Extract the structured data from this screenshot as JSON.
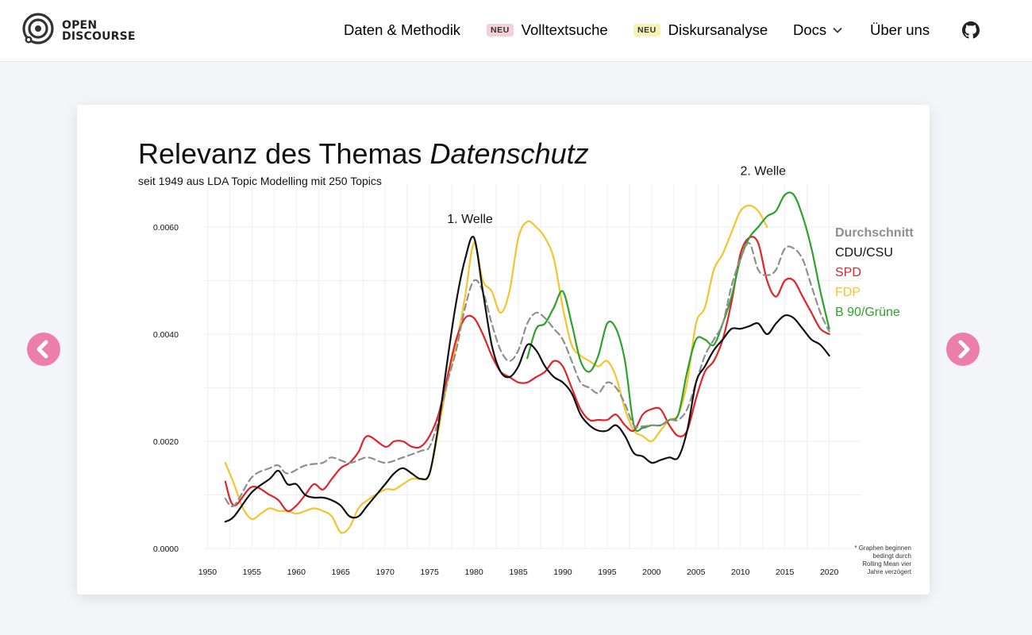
{
  "header": {
    "logo_line1": "OPEN",
    "logo_line2": "DISCOURSE",
    "nav": [
      {
        "label": "Daten & Methodik"
      },
      {
        "label": "Volltextsuche",
        "badge": "NEU",
        "badge_color": "#f6d0d8"
      },
      {
        "label": "Diskursanalyse",
        "badge": "NEU",
        "badge_color": "#f8f2b5"
      },
      {
        "label": "Docs"
      },
      {
        "label": "Über uns"
      }
    ],
    "github_icon": "github-icon"
  },
  "carousel": {
    "prev_icon": "chevron-left-icon",
    "next_icon": "chevron-right-icon",
    "accent": "#ec7fa9"
  },
  "chart_data": {
    "type": "line",
    "title_plain": "Relevanz des Themas ",
    "title_italic": "Datenschutz",
    "subtitle": "seit 1949 aus LDA Topic Modelling mit 250 Topics",
    "xlim": [
      1948,
      2022
    ],
    "ylim": [
      0,
      0.0068
    ],
    "x_ticks": [
      1950,
      1955,
      1960,
      1965,
      1970,
      1975,
      1980,
      1985,
      1990,
      1995,
      2000,
      2005,
      2010,
      2015,
      2020
    ],
    "y_ticks": [
      {
        "value": 0.0,
        "label": "0.0000"
      },
      {
        "value": 0.002,
        "label": "0.0020"
      },
      {
        "value": 0.004,
        "label": "0.0040"
      },
      {
        "value": 0.006,
        "label": "0.0060"
      }
    ],
    "grid": true,
    "legend_position": "right",
    "annotations": [
      {
        "text": "1. Welle",
        "x": 1980,
        "y": 0.006
      },
      {
        "text": "2. Welle",
        "x": 2013,
        "y": 0.0069
      }
    ],
    "footnote": [
      "* Graphen beginnen",
      "bedingt durch",
      "Rolling Mean vier",
      "Jahre verzögert"
    ],
    "series": [
      {
        "name": "Durchschnitt",
        "color": "#8e8e8e",
        "dashed": true,
        "x": [
          1952,
          1953,
          1955,
          1957,
          1958,
          1959,
          1961,
          1963,
          1964,
          1966,
          1968,
          1970,
          1972,
          1974,
          1975,
          1976,
          1977,
          1978,
          1979,
          1980,
          1981,
          1982,
          1983,
          1984,
          1985,
          1986,
          1987,
          1988,
          1989,
          1990,
          1991,
          1992,
          1993,
          1994,
          1995,
          1996,
          1997,
          1998,
          1999,
          2000,
          2001,
          2002,
          2003,
          2004,
          2005,
          2006,
          2007,
          2008,
          2009,
          2010,
          2011,
          2012,
          2013,
          2014,
          2015,
          2016,
          2017,
          2018,
          2019,
          2020
        ],
        "y": [
          0.00093,
          0.0008,
          0.00133,
          0.0015,
          0.00155,
          0.0014,
          0.00155,
          0.0016,
          0.0017,
          0.0016,
          0.0017,
          0.0016,
          0.0017,
          0.00182,
          0.0019,
          0.0024,
          0.0031,
          0.0037,
          0.0045,
          0.005,
          0.0048,
          0.0042,
          0.0037,
          0.0035,
          0.0037,
          0.0042,
          0.0044,
          0.0043,
          0.0041,
          0.0039,
          0.0035,
          0.0031,
          0.003,
          0.0029,
          0.0031,
          0.003,
          0.0027,
          0.0023,
          0.00228,
          0.0023,
          0.0023,
          0.0024,
          0.0024,
          0.0026,
          0.0031,
          0.0036,
          0.0039,
          0.0042,
          0.0049,
          0.0054,
          0.0057,
          0.0052,
          0.0051,
          0.0052,
          0.0056,
          0.0056,
          0.0054,
          0.0049,
          0.0044,
          0.00405
        ]
      },
      {
        "name": "CDU/CSU",
        "color": "#111111",
        "dashed": false,
        "x": [
          1952,
          1953,
          1955,
          1957,
          1958,
          1959,
          1960,
          1961,
          1962,
          1963,
          1964,
          1965,
          1966,
          1967,
          1968,
          1970,
          1971,
          1972,
          1973,
          1974,
          1975,
          1976,
          1977,
          1978,
          1979,
          1980,
          1981,
          1982,
          1983,
          1984,
          1985,
          1986,
          1987,
          1988,
          1989,
          1990,
          1991,
          1992,
          1993,
          1994,
          1995,
          1996,
          1997,
          1998,
          1999,
          2000,
          2001,
          2002,
          2003,
          2004,
          2005,
          2006,
          2007,
          2008,
          2009,
          2010,
          2011,
          2012,
          2013,
          2014,
          2015,
          2016,
          2017,
          2018,
          2019,
          2020
        ],
        "y": [
          0.0005,
          0.0006,
          0.00105,
          0.0013,
          0.00145,
          0.0012,
          0.0012,
          0.001,
          0.00095,
          0.00095,
          0.0009,
          0.0008,
          0.0006,
          0.0006,
          0.0008,
          0.0012,
          0.0014,
          0.0015,
          0.0014,
          0.0013,
          0.0014,
          0.0023,
          0.0035,
          0.0046,
          0.0054,
          0.0058,
          0.0048,
          0.0038,
          0.0033,
          0.0032,
          0.0034,
          0.0038,
          0.0037,
          0.0034,
          0.0032,
          0.0031,
          0.0029,
          0.0025,
          0.0023,
          0.0022,
          0.0022,
          0.0023,
          0.0021,
          0.00178,
          0.00172,
          0.0016,
          0.00165,
          0.0017,
          0.0017,
          0.0022,
          0.0031,
          0.0034,
          0.0037,
          0.0039,
          0.0041,
          0.0041,
          0.00415,
          0.0042,
          0.004,
          0.0042,
          0.00435,
          0.0043,
          0.0041,
          0.0039,
          0.0038,
          0.0036
        ]
      },
      {
        "name": "SPD",
        "color": "#e0242b",
        "dashed": false,
        "x": [
          1952,
          1953,
          1955,
          1957,
          1958,
          1959,
          1960,
          1961,
          1962,
          1963,
          1964,
          1965,
          1966,
          1967,
          1968,
          1970,
          1971,
          1972,
          1973,
          1974,
          1975,
          1976,
          1977,
          1978,
          1979,
          1980,
          1981,
          1982,
          1983,
          1984,
          1985,
          1986,
          1987,
          1988,
          1989,
          1990,
          1991,
          1992,
          1993,
          1994,
          1995,
          1996,
          1997,
          1998,
          1999,
          2000,
          2001,
          2002,
          2003,
          2004,
          2005,
          2006,
          2007,
          2008,
          2009,
          2010,
          2011,
          2012,
          2013,
          2014,
          2015,
          2016,
          2017,
          2018,
          2019,
          2020
        ],
        "y": [
          0.00125,
          0.0008,
          0.00115,
          0.001,
          0.0009,
          0.0007,
          0.0008,
          0.001,
          0.0012,
          0.0011,
          0.0013,
          0.0015,
          0.0016,
          0.0018,
          0.0021,
          0.0019,
          0.002,
          0.002,
          0.0019,
          0.0019,
          0.0021,
          0.0025,
          0.0032,
          0.0039,
          0.0043,
          0.0043,
          0.004,
          0.0036,
          0.0033,
          0.0032,
          0.0031,
          0.0031,
          0.0032,
          0.0033,
          0.0035,
          0.0034,
          0.003,
          0.0026,
          0.0024,
          0.0024,
          0.0024,
          0.0025,
          0.0023,
          0.0022,
          0.0025,
          0.0026,
          0.0026,
          0.0023,
          0.0021,
          0.0022,
          0.0028,
          0.0033,
          0.0035,
          0.0039,
          0.0046,
          0.0055,
          0.0058,
          0.0057,
          0.005,
          0.0047,
          0.005,
          0.005,
          0.0047,
          0.0044,
          0.0041,
          0.004
        ]
      },
      {
        "name": "FDP",
        "color": "#f2c52c",
        "dashed": false,
        "x": [
          1952,
          1953,
          1954,
          1955,
          1956,
          1957,
          1958,
          1959,
          1960,
          1961,
          1962,
          1963,
          1964,
          1965,
          1966,
          1967,
          1968,
          1970,
          1971,
          1972,
          1973,
          1974,
          1975,
          1976,
          1977,
          1978,
          1979,
          1980,
          1981,
          1982,
          1983,
          1984,
          1985,
          1986,
          1987,
          1988,
          1989,
          1990,
          1991,
          1992,
          1993,
          1994,
          1995,
          1996,
          1997,
          1998,
          1999,
          2000,
          2001,
          2002,
          2003,
          2004,
          2005,
          2006,
          2007,
          2008,
          2009,
          2010,
          2011,
          2012,
          2013
        ],
        "y": [
          0.0016,
          0.0012,
          0.00075,
          0.00055,
          0.00065,
          0.00075,
          0.0007,
          0.0007,
          0.00065,
          0.0007,
          0.00075,
          0.0007,
          0.0006,
          0.0003,
          0.0004,
          0.00075,
          0.0009,
          0.0011,
          0.0011,
          0.0012,
          0.0013,
          0.0013,
          0.0014,
          0.0022,
          0.0031,
          0.0038,
          0.0047,
          0.0057,
          0.005,
          0.0048,
          0.0044,
          0.0048,
          0.0058,
          0.0061,
          0.006,
          0.0058,
          0.0054,
          0.0045,
          0.0038,
          0.0036,
          0.0035,
          0.0034,
          0.0035,
          0.0032,
          0.0026,
          0.0022,
          0.0021,
          0.002,
          0.0022,
          0.0024,
          0.0025,
          0.0031,
          0.0042,
          0.0045,
          0.0052,
          0.0055,
          0.0059,
          0.0063,
          0.0064,
          0.0063,
          0.006
        ]
      },
      {
        "name": "B 90/Grüne",
        "color": "#2ca12c",
        "dashed": false,
        "x": [
          1986,
          1987,
          1988,
          1989,
          1990,
          1991,
          1992,
          1993,
          1994,
          1995,
          1996,
          1997,
          1998,
          1999,
          2000,
          2001,
          2002,
          2003,
          2004,
          2005,
          2006,
          2007,
          2008,
          2009,
          2010,
          2011,
          2012,
          2013,
          2014,
          2015,
          2016,
          2017,
          2018,
          2019,
          2020
        ],
        "y": [
          0.00355,
          0.0041,
          0.0042,
          0.0045,
          0.0048,
          0.0042,
          0.0035,
          0.0033,
          0.0036,
          0.0042,
          0.0041,
          0.0035,
          0.0023,
          0.00225,
          0.0023,
          0.0023,
          0.0024,
          0.0025,
          0.0033,
          0.0039,
          0.0039,
          0.0038,
          0.0042,
          0.0047,
          0.0054,
          0.0058,
          0.006,
          0.0062,
          0.0063,
          0.0066,
          0.0066,
          0.0062,
          0.0056,
          0.0048,
          0.0041
        ]
      }
    ]
  }
}
